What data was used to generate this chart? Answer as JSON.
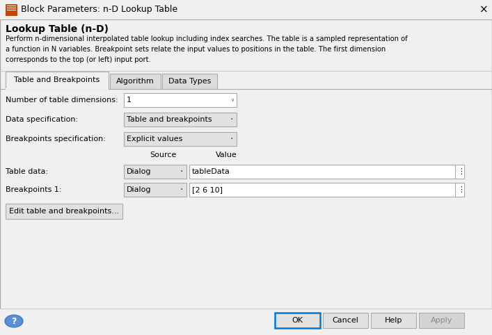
{
  "title": "Block Parameters: n-D Lookup Table",
  "close_x": "×",
  "section_title": "Lookup Table (n-D)",
  "description_lines": [
    "Perform n-dimensional interpolated table lookup including index searches. The table is a sampled representation of",
    "a function in N variables. Breakpoint sets relate the input values to positions in the table. The first dimension",
    "corresponds to the top (or left) input port."
  ],
  "tabs": [
    "Table and Breakpoints",
    "Algorithm",
    "Data Types"
  ],
  "active_tab": 0,
  "dim_label": "Number of table dimensions:",
  "dim_value": "1",
  "data_spec_label": "Data specification:",
  "data_spec_value": "Table and breakpoints",
  "bp_spec_label": "Breakpoints specification:",
  "bp_spec_value": "Explicit values",
  "source_col": "Source",
  "value_col": "Value",
  "table_data_label": "Table data:",
  "table_data_source": "Dialog",
  "table_data_value": "tableData",
  "bp1_label": "Breakpoints 1:",
  "bp1_source": "Dialog",
  "bp1_value": "[2 6 10]",
  "edit_btn_label": "Edit table and breakpoints...",
  "bottom_buttons": [
    "OK",
    "Cancel",
    "Help",
    "Apply"
  ],
  "bg": "#F0F0F0",
  "white": "#FFFFFF",
  "light_gray": "#E1E1E1",
  "dark_gray": "#DCDCDC",
  "border": "#AAAAAA",
  "ok_border": "#0078D7",
  "text": "#000000",
  "gray_text": "#888888",
  "title_fs": 9,
  "label_fs": 8,
  "tab_fs": 8
}
